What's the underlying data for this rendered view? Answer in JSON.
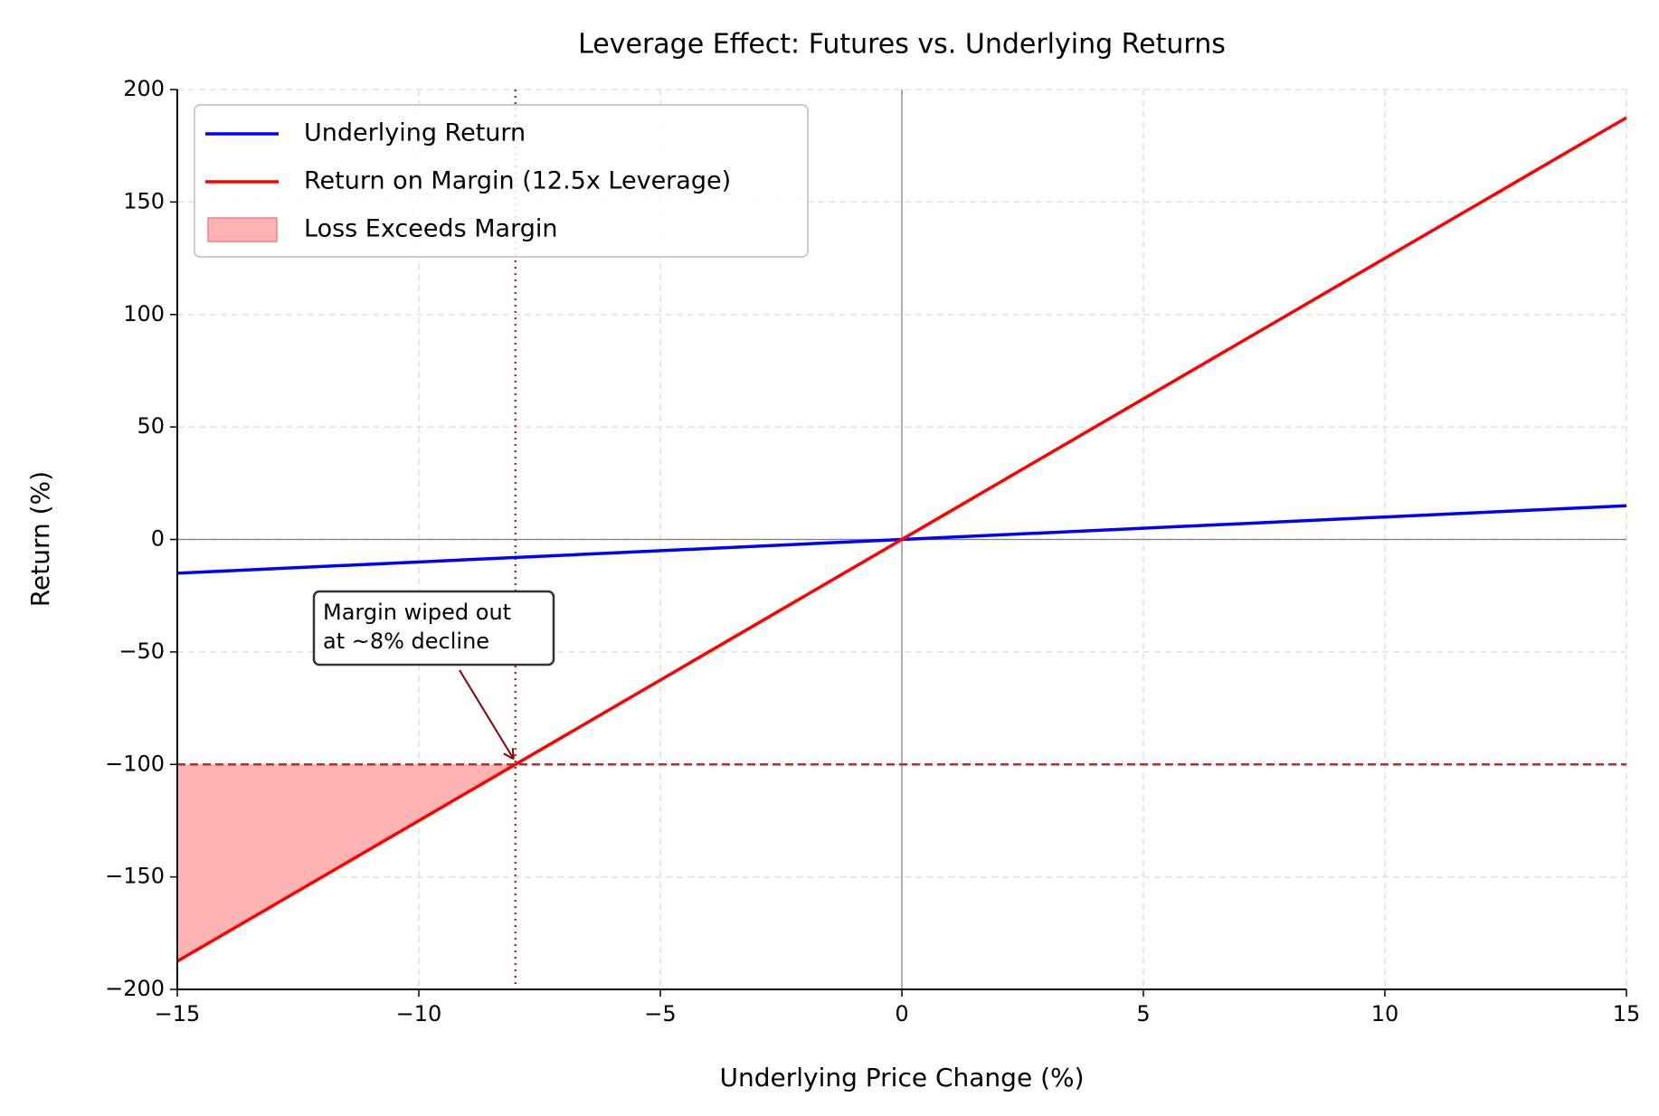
{
  "chart_data": {
    "type": "line",
    "title": "Leverage Effect: Futures vs. Underlying Returns",
    "xlabel": "Underlying Price Change (%)",
    "ylabel": "Return (%)",
    "x": [
      -15,
      0,
      15
    ],
    "series": [
      {
        "name": "Underlying Return",
        "color": "#0000ff",
        "values": [
          -15,
          0,
          15
        ]
      },
      {
        "name": "Return on Margin (12.5x Leverage)",
        "color": "#ff0000",
        "values": [
          -187.5,
          0,
          187.5
        ]
      }
    ],
    "fill": {
      "name": "Loss Exceeds Margin",
      "color": "#ffb3b3",
      "x": [
        -15,
        -8
      ],
      "values": [
        -187.5,
        -100
      ],
      "base": -100
    },
    "reference_lines": {
      "margin_level": -100,
      "wipeout_x": -8
    },
    "annotation": {
      "lines": [
        "Margin wiped out",
        "at ~8% decline"
      ],
      "x": -8,
      "y": -100
    },
    "xlim": [
      -15,
      15
    ],
    "ylim": [
      -200,
      200
    ],
    "xticks": [
      {
        "value": -15,
        "label": "−15"
      },
      {
        "value": -10,
        "label": "−10"
      },
      {
        "value": -5,
        "label": "−5"
      },
      0,
      5,
      10,
      15
    ],
    "yticks": [
      {
        "value": -200,
        "label": "−200"
      },
      {
        "value": -150,
        "label": "−150"
      },
      {
        "value": -100,
        "label": "−100"
      },
      {
        "value": -50,
        "label": "−50"
      },
      0,
      50,
      100,
      150,
      200
    ],
    "grid": true,
    "legend": "upper left"
  }
}
